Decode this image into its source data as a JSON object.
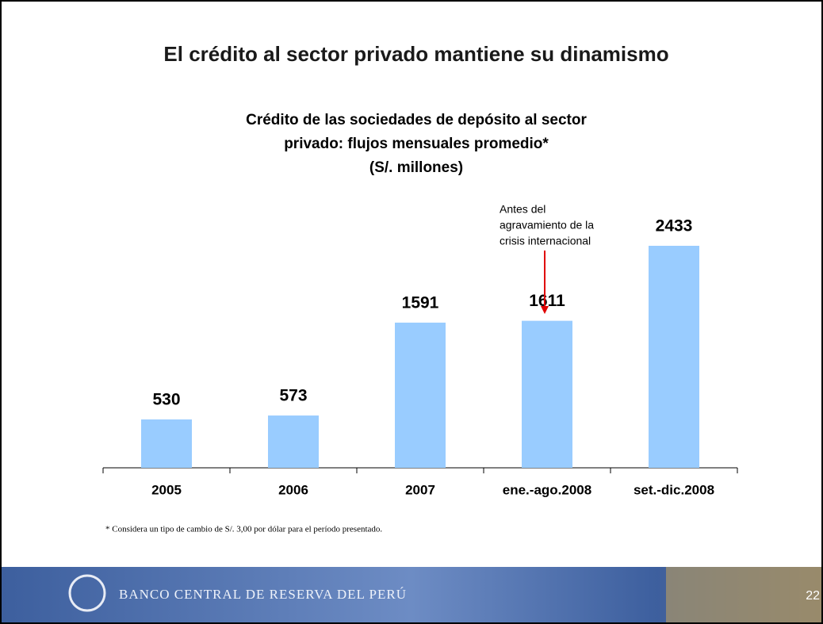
{
  "slide_title": "El crédito al sector privado mantiene su dinamismo",
  "chart_data": {
    "type": "bar",
    "title": [
      "Crédito de las sociedades de depósito al sector",
      "privado: flujos mensuales promedio*",
      "(S/. millones)"
    ],
    "categories": [
      "2005",
      "2006",
      "2007",
      "ene.-ago.2008",
      "set.-dic.2008"
    ],
    "values": [
      530,
      573,
      1591,
      1611,
      2433
    ],
    "color": "#99ccff",
    "annotation": {
      "lines": [
        "Antes del",
        "agravamiento de la",
        "crisis internacional"
      ],
      "category": 3,
      "color": "#e00000"
    }
  },
  "footnote": "* Considera un tipo de cambio de S/. 3,00 por dólar para el período presentado.",
  "footer": {
    "bank_name": "BANCO CENTRAL DE RESERVA DEL PERÚ",
    "page_number": "22"
  }
}
